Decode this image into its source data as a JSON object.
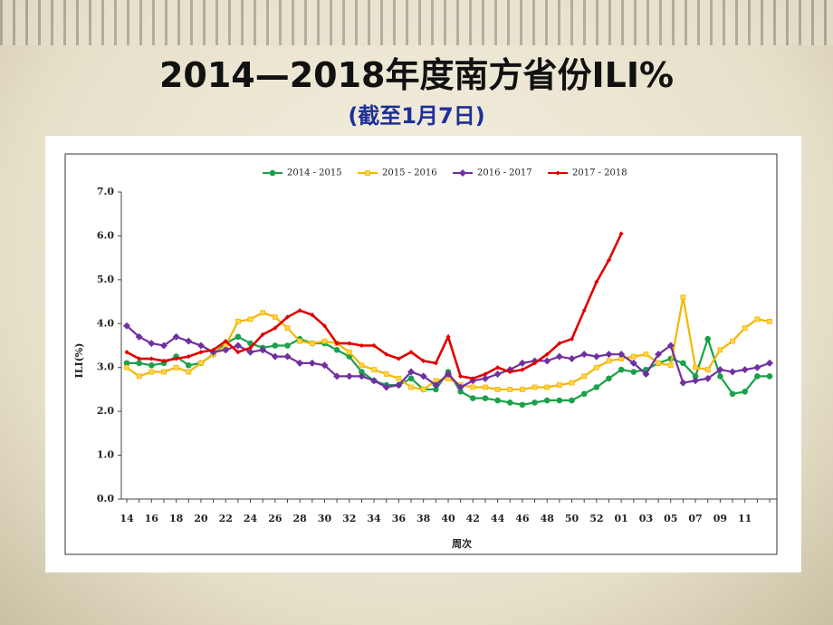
{
  "title": "2014—2018年度南方省份ILI%",
  "subtitle": "(截至1月7日)",
  "chart_data": {
    "type": "line",
    "x_label": "周次",
    "y_label": "ILI(%)",
    "categories": [
      "14",
      null,
      "16",
      null,
      "18",
      null,
      "20",
      null,
      "22",
      null,
      "24",
      null,
      "26",
      null,
      "28",
      null,
      "30",
      null,
      "32",
      null,
      "34",
      null,
      "36",
      null,
      "38",
      null,
      "40",
      null,
      "42",
      null,
      "44",
      null,
      "46",
      null,
      "48",
      null,
      "50",
      null,
      "52",
      null,
      "01",
      null,
      "03",
      null,
      "05",
      null,
      "07",
      null,
      "09",
      null,
      "11",
      null,
      null
    ],
    "ylim": [
      0,
      7
    ],
    "yticks": [
      {
        "value": 0,
        "label": "0.0"
      },
      {
        "value": 1,
        "label": "1.0"
      },
      {
        "value": 2,
        "label": "2.0"
      },
      {
        "value": 3,
        "label": "3.0"
      },
      {
        "value": 4,
        "label": "4.0"
      },
      {
        "value": 5,
        "label": "5.0"
      },
      {
        "value": 6,
        "label": "6.0"
      },
      {
        "value": 7,
        "label": "7.0"
      }
    ],
    "series": [
      {
        "name": "2014 - 2015",
        "color": "#1aa14a",
        "marker": "circle",
        "values": [
          3.1,
          3.1,
          3.05,
          3.1,
          3.25,
          3.05,
          3.1,
          3.3,
          3.55,
          3.7,
          3.55,
          3.45,
          3.5,
          3.5,
          3.65,
          3.55,
          3.55,
          3.4,
          3.25,
          2.9,
          2.7,
          2.6,
          2.6,
          2.75,
          2.5,
          2.5,
          2.9,
          2.45,
          2.3,
          2.3,
          2.25,
          2.2,
          2.15,
          2.2,
          2.25,
          2.25,
          2.25,
          2.4,
          2.55,
          2.75,
          2.95,
          2.9,
          2.95,
          3.1,
          3.2,
          3.1,
          2.8,
          3.65,
          2.8,
          2.4,
          2.45,
          2.8,
          2.8
        ]
      },
      {
        "name": "2015 - 2016",
        "color": "#f2b600",
        "marker": "square",
        "values": [
          3.0,
          2.8,
          2.9,
          2.9,
          3.0,
          2.9,
          3.1,
          3.3,
          3.5,
          4.05,
          4.1,
          4.25,
          4.15,
          3.9,
          3.6,
          3.55,
          3.6,
          3.55,
          3.35,
          3.05,
          2.95,
          2.85,
          2.75,
          2.55,
          2.5,
          2.7,
          2.75,
          2.6,
          2.55,
          2.55,
          2.5,
          2.5,
          2.5,
          2.55,
          2.55,
          2.6,
          2.65,
          2.8,
          3.0,
          3.15,
          3.2,
          3.25,
          3.3,
          3.1,
          3.05,
          4.6,
          3.0,
          2.95,
          3.4,
          3.6,
          3.9,
          4.1,
          4.05
        ]
      },
      {
        "name": "2016 - 2017",
        "color": "#7030a0",
        "marker": "diamond",
        "values": [
          3.95,
          3.7,
          3.55,
          3.5,
          3.7,
          3.6,
          3.5,
          3.35,
          3.4,
          3.5,
          3.35,
          3.4,
          3.25,
          3.25,
          3.1,
          3.1,
          3.05,
          2.8,
          2.8,
          2.8,
          2.7,
          2.55,
          2.6,
          2.9,
          2.8,
          2.6,
          2.85,
          2.55,
          2.7,
          2.75,
          2.85,
          2.95,
          3.1,
          3.15,
          3.15,
          3.25,
          3.2,
          3.3,
          3.25,
          3.3,
          3.3,
          3.1,
          2.85,
          3.3,
          3.5,
          2.65,
          2.7,
          2.75,
          2.95,
          2.9,
          2.95,
          3.0,
          3.1
        ]
      },
      {
        "name": "2017 - 2018",
        "color": "#e00000",
        "marker": "small-diamond",
        "values": [
          3.35,
          3.2,
          3.2,
          3.15,
          3.2,
          3.25,
          3.35,
          3.4,
          3.6,
          3.35,
          3.45,
          3.75,
          3.9,
          4.15,
          4.3,
          4.2,
          3.95,
          3.55,
          3.55,
          3.5,
          3.5,
          3.3,
          3.2,
          3.35,
          3.15,
          3.1,
          3.7,
          2.8,
          2.75,
          2.85,
          3.0,
          2.9,
          2.95,
          3.1,
          3.3,
          3.55,
          3.65,
          4.3,
          4.95,
          5.45,
          6.05,
          null,
          null,
          null,
          null,
          null,
          null,
          null,
          null,
          null,
          null,
          null,
          null
        ]
      }
    ]
  }
}
